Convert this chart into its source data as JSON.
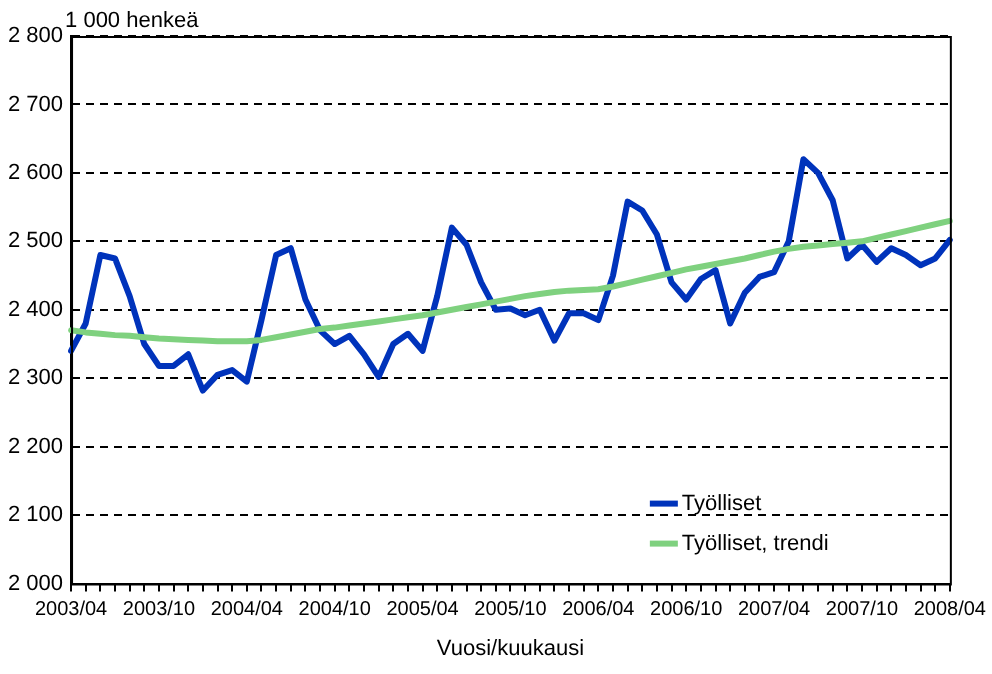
{
  "chart_data": {
    "type": "line",
    "ylabel": "1 000 henkeä",
    "xlabel": "Vuosi/kuukausi",
    "categories": [
      "2003/04",
      null,
      null,
      null,
      null,
      null,
      "2003/10",
      null,
      null,
      null,
      null,
      null,
      "2004/04",
      null,
      null,
      null,
      null,
      null,
      "2004/10",
      null,
      null,
      null,
      null,
      null,
      "2005/04",
      null,
      null,
      null,
      null,
      null,
      "2005/10",
      null,
      null,
      null,
      null,
      null,
      "2006/04",
      null,
      null,
      null,
      null,
      null,
      "2006/10",
      null,
      null,
      null,
      null,
      null,
      "2007/04",
      null,
      null,
      null,
      null,
      null,
      "2007/10",
      null,
      null,
      null,
      null,
      null,
      "2008/04"
    ],
    "series": [
      {
        "name": "Työlliset",
        "color": "#0033bb",
        "values": [
          2340,
          2380,
          2480,
          2475,
          2420,
          2350,
          2318,
          2318,
          2335,
          2282,
          2305,
          2312,
          2295,
          2385,
          2480,
          2490,
          2415,
          2370,
          2350,
          2362,
          2335,
          2302,
          2350,
          2365,
          2340,
          2420,
          2520,
          2495,
          2440,
          2400,
          2402,
          2392,
          2400,
          2355,
          2395,
          2395,
          2385,
          2450,
          2558,
          2545,
          2510,
          2440,
          2415,
          2445,
          2458,
          2380,
          2425,
          2448,
          2455,
          2500,
          2620,
          2600,
          2560,
          2475,
          2495,
          2470,
          2490,
          2480,
          2465,
          2475,
          2502
        ]
      },
      {
        "name": "Työlliset, trendi",
        "color": "#7fd17f",
        "values": [
          2370,
          2367,
          2365,
          2363,
          2362,
          2360,
          2358,
          2357,
          2356,
          2355,
          2354,
          2354,
          2354,
          2356,
          2360,
          2364,
          2368,
          2372,
          2374,
          2377,
          2380,
          2383,
          2386,
          2389,
          2392,
          2396,
          2400,
          2404,
          2408,
          2412,
          2416,
          2420,
          2423,
          2426,
          2428,
          2429,
          2430,
          2434,
          2439,
          2444,
          2449,
          2454,
          2459,
          2463,
          2467,
          2471,
          2475,
          2480,
          2485,
          2489,
          2492,
          2494,
          2496,
          2498,
          2500,
          2505,
          2510,
          2515,
          2520,
          2525,
          2530
        ]
      }
    ],
    "ylim": [
      2000,
      2800
    ],
    "yticks": [
      {
        "value": 2000,
        "label": "2 000"
      },
      {
        "value": 2100,
        "label": "2 100"
      },
      {
        "value": 2200,
        "label": "2 200"
      },
      {
        "value": 2300,
        "label": "2 300"
      },
      {
        "value": 2400,
        "label": "2 400"
      },
      {
        "value": 2500,
        "label": "2 500"
      },
      {
        "value": 2600,
        "label": "2 600"
      },
      {
        "value": 2700,
        "label": "2 700"
      },
      {
        "value": 2800,
        "label": "2 800"
      }
    ],
    "grid": "y",
    "line_style": "solid",
    "marker": "none",
    "legend": "bottom right"
  }
}
